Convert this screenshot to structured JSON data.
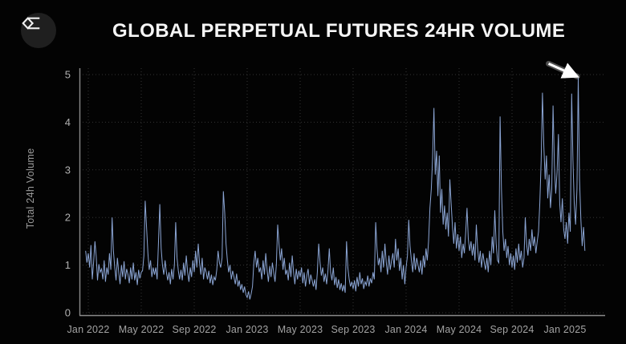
{
  "header": {
    "title": "GLOBAL PERPETUAL FUTURES 24HR VOLUME",
    "logo_icon": "sigma-diamond-logo-icon"
  },
  "chart_data": {
    "type": "line",
    "title": "GLOBAL PERPETUAL FUTURES 24HR VOLUME",
    "xlabel": "",
    "ylabel": "Total 24h Volume",
    "ylim": [
      0,
      5
    ],
    "grid": true,
    "legend": false,
    "grid_color": "#343434",
    "axis_color": "#8a8a8a",
    "tick_label_color": "#a3a3a3",
    "line_color": "#8ba5d4",
    "background_color": "#030303",
    "y_tick_labels": [
      "0",
      "1",
      "2",
      "3",
      "4",
      "5"
    ],
    "x_tick_labels": [
      "Jan 2022",
      "May 2022",
      "Sep 2022",
      "Jan 2023",
      "May 2023",
      "Sep 2023",
      "Jan 2024",
      "May 2024",
      "Sep 2024",
      "Jan 2025"
    ],
    "x_unit": "month index since Jan 2022, ~10 samples per month (≈3-day resolution), Dec 2021 through mid-Feb 2025",
    "x_start_month": -0.2,
    "samples_per_month": 10,
    "annotation_arrow": {
      "description": "white arrow pointing at final record spike near 4.9",
      "color": "#ffffff",
      "x1_month": 34.76,
      "y1_value": 5.23,
      "x2_month": 36.92,
      "y2_value": 4.96
    },
    "series": [
      {
        "name": "Global perpetual futures 24h volume",
        "values": [
          1.3,
          1.05,
          1.25,
          0.95,
          1.42,
          0.7,
          1.05,
          1.5,
          1.18,
          0.68,
          1.02,
          0.85,
          0.92,
          0.7,
          1.1,
          0.65,
          0.95,
          0.8,
          1.25,
          0.9,
          2.0,
          1.3,
          0.95,
          0.68,
          1.15,
          0.85,
          0.6,
          1.0,
          0.75,
          1.08,
          0.7,
          0.92,
          0.8,
          0.62,
          0.95,
          0.7,
          1.05,
          0.68,
          0.85,
          0.58,
          0.9,
          0.72,
          0.85,
          0.88,
          1.2,
          2.35,
          1.8,
          1.25,
          0.9,
          1.1,
          0.75,
          0.95,
          0.8,
          0.95,
          0.7,
          1.45,
          2.28,
          1.35,
          1.0,
          0.8,
          1.1,
          0.85,
          0.68,
          0.85,
          0.6,
          0.92,
          0.7,
          1.0,
          1.9,
          1.15,
          0.88,
          0.7,
          0.9,
          0.68,
          1.05,
          0.78,
          1.2,
          0.85,
          0.65,
          0.95,
          0.75,
          1.1,
          0.85,
          1.3,
          0.95,
          1.45,
          1.05,
          0.8,
          1.15,
          0.7,
          0.95,
          0.85,
          0.7,
          0.88,
          0.62,
          0.8,
          0.58,
          0.75,
          0.68,
          0.9,
          1.3,
          1.05,
          0.95,
          1.15,
          2.55,
          2.1,
          1.45,
          1.1,
          0.85,
          1.0,
          0.7,
          0.88,
          0.75,
          0.6,
          0.82,
          0.55,
          0.68,
          0.48,
          0.6,
          0.42,
          0.55,
          0.38,
          0.32,
          0.45,
          0.28,
          0.4,
          0.55,
          1.05,
          1.3,
          0.95,
          1.15,
          0.85,
          0.95,
          0.7,
          1.1,
          0.8,
          1.25,
          0.9,
          0.65,
          0.98,
          0.75,
          1.05,
          0.85,
          0.65,
          1.0,
          1.85,
          1.45,
          1.1,
          1.35,
          0.9,
          1.15,
          0.8,
          0.9,
          0.68,
          1.05,
          0.75,
          1.2,
          0.85,
          0.6,
          0.92,
          0.7,
          0.88,
          0.75,
          0.95,
          0.62,
          0.85,
          0.55,
          0.78,
          0.92,
          0.6,
          0.8,
          0.68,
          0.55,
          0.7,
          0.48,
          0.85,
          1.45,
          1.05,
          0.78,
          0.95,
          0.65,
          0.82,
          0.6,
          0.9,
          1.35,
          0.85,
          0.68,
          0.95,
          0.58,
          0.75,
          0.52,
          0.7,
          0.48,
          0.62,
          0.45,
          0.58,
          0.42,
          1.5,
          0.95,
          0.7,
          0.55,
          0.65,
          0.5,
          0.68,
          0.45,
          0.75,
          0.55,
          0.85,
          0.6,
          0.72,
          0.5,
          0.65,
          0.58,
          0.78,
          0.55,
          0.72,
          0.62,
          0.85,
          0.7,
          1.9,
          1.35,
          1.0,
          1.15,
          0.85,
          1.3,
          0.95,
          1.45,
          1.05,
          0.8,
          1.2,
          0.9,
          1.1,
          1.25,
          0.95,
          1.55,
          1.1,
          1.35,
          0.88,
          1.15,
          0.7,
          1.0,
          0.6,
          0.95,
          1.2,
          1.95,
          1.4,
          1.1,
          0.85,
          1.25,
          0.9,
          1.15,
          1.0,
          0.85,
          1.1,
          0.8,
          1.2,
          0.95,
          1.35,
          1.1,
          1.5,
          2.2,
          2.6,
          3.25,
          4.3,
          2.9,
          3.4,
          2.45,
          3.3,
          2.1,
          2.6,
          1.85,
          2.25,
          1.75,
          2.1,
          1.6,
          2.8,
          2.3,
          1.8,
          1.45,
          1.9,
          1.35,
          1.65,
          1.3,
          1.6,
          1.15,
          1.45,
          1.25,
          1.7,
          2.2,
          1.55,
          1.3,
          1.5,
          1.2,
          1.45,
          1.1,
          1.85,
          1.35,
          1.05,
          1.3,
          0.95,
          1.25,
          1.05,
          0.9,
          1.15,
          0.85,
          1.3,
          1.0,
          1.6,
          1.25,
          2.15,
          1.45,
          1.1,
          1.05,
          4.12,
          2.6,
          1.7,
          1.3,
          1.55,
          1.15,
          1.4,
          1.0,
          1.25,
          0.95,
          1.2,
          0.9,
          1.35,
          1.05,
          1.45,
          1.1,
          1.3,
          0.95,
          1.15,
          2.0,
          1.45,
          1.2,
          1.55,
          1.3,
          1.75,
          1.4,
          1.6,
          1.25,
          1.5,
          1.7,
          2.3,
          3.2,
          4.62,
          3.5,
          2.8,
          3.3,
          2.4,
          2.9,
          2.2,
          2.6,
          4.35,
          3.1,
          2.5,
          2.95,
          3.75,
          2.3,
          1.9,
          2.4,
          1.75,
          1.55,
          1.9,
          1.45,
          2.1,
          1.7,
          4.6,
          3.2,
          2.3,
          1.85,
          2.6,
          4.93,
          2.8,
          1.95,
          1.4,
          1.8,
          1.3
        ]
      }
    ]
  }
}
